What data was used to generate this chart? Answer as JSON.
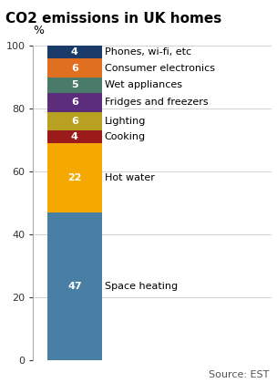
{
  "title": "CO2 emissions in UK homes",
  "ylabel": "%",
  "source": "Source: EST",
  "categories": [
    "Space heating",
    "Hot water",
    "Cooking",
    "Lighting",
    "Fridges and freezers",
    "Wet appliances",
    "Consumer electronics",
    "Phones, wi-fi, etc"
  ],
  "values": [
    47,
    22,
    4,
    6,
    6,
    5,
    6,
    4
  ],
  "colors": [
    "#4a7fa5",
    "#f5a800",
    "#9b1a1a",
    "#b8a020",
    "#5c2d7a",
    "#4a7a6a",
    "#e07020",
    "#1a3a6a"
  ],
  "label_color": "white",
  "label_fontsize": 8,
  "annotation_fontsize": 8,
  "title_fontsize": 11,
  "ylabel_fontsize": 9,
  "source_fontsize": 8,
  "ylim": [
    0,
    100
  ],
  "yticks": [
    0,
    20,
    40,
    60,
    80,
    100
  ],
  "bar_width": 0.55,
  "bg_color": "#ffffff"
}
